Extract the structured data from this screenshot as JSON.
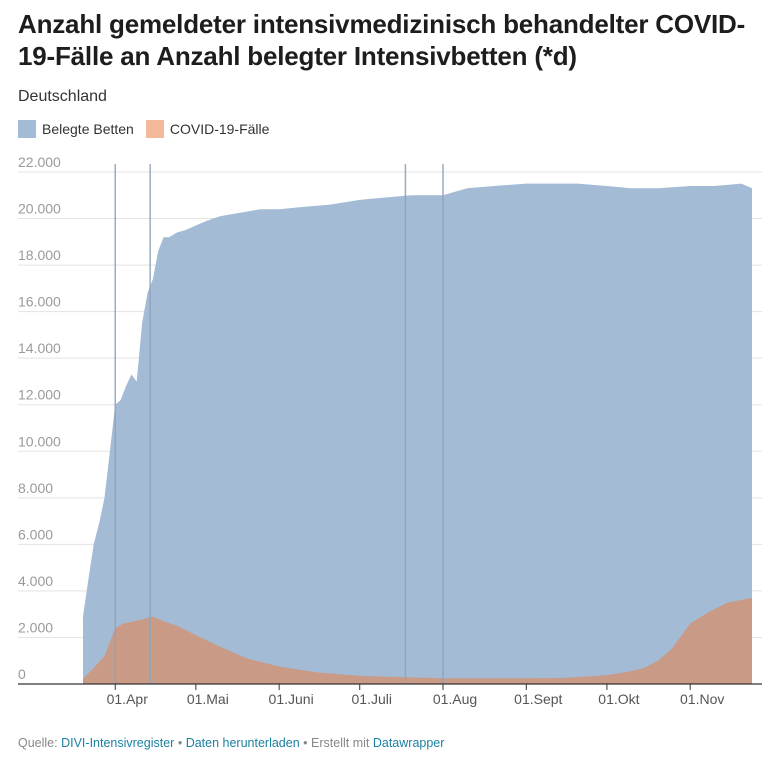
{
  "header": {
    "title": "Anzahl gemeldeter intensivmedizinisch behandelter COVID-19-Fälle an Anzahl belegter Intensivbetten (*d)",
    "subtitle": "Deutschland"
  },
  "legend": [
    {
      "label": "Belegte Betten",
      "color": "#a3bbd4"
    },
    {
      "label": "COVID-19-Fälle",
      "color": "#f4b89a"
    }
  ],
  "footer": {
    "source_prefix": "Quelle:",
    "source_link": "DIVI-Intensivregister",
    "sep1": "•",
    "download_link": "Daten herunterladen",
    "sep2": "•",
    "created_text": "Erstellt mit",
    "tool_link": "Datawrapper"
  },
  "chart_data": {
    "type": "area",
    "x_start": "2020-03-20",
    "x_end": "2020-11-24",
    "ylim": [
      0,
      22000
    ],
    "yticks": [
      0,
      2000,
      4000,
      6000,
      8000,
      10000,
      12000,
      14000,
      16000,
      18000,
      20000,
      22000
    ],
    "ytick_labels": [
      "0",
      "2.000",
      "4.000",
      "6.000",
      "8.000",
      "10.000",
      "12.000",
      "14.000",
      "16.000",
      "18.000",
      "20.000",
      "22.000"
    ],
    "xtick_labels": [
      "01.Apr",
      "01.Mai",
      "01.Juni",
      "01.Juli",
      "01.Aug",
      "01.Sept",
      "01.Okt",
      "01.Nov"
    ],
    "xtick_dates": [
      "2020-04-01",
      "2020-05-01",
      "2020-06-01",
      "2020-07-01",
      "2020-08-01",
      "2020-09-01",
      "2020-10-01",
      "2020-11-01"
    ],
    "vertical_markers": [
      "2020-04-01",
      "2020-04-14",
      "2020-07-18",
      "2020-08-01"
    ],
    "grid": true,
    "series": [
      {
        "name": "Belegte Betten",
        "color": "#a3bbd4",
        "x": [
          "2020-03-20",
          "2020-03-22",
          "2020-03-24",
          "2020-03-26",
          "2020-03-28",
          "2020-03-30",
          "2020-04-01",
          "2020-04-03",
          "2020-04-05",
          "2020-04-07",
          "2020-04-09",
          "2020-04-11",
          "2020-04-13",
          "2020-04-15",
          "2020-04-17",
          "2020-04-19",
          "2020-04-21",
          "2020-04-24",
          "2020-04-27",
          "2020-05-01",
          "2020-05-05",
          "2020-05-10",
          "2020-05-15",
          "2020-05-20",
          "2020-05-25",
          "2020-06-01",
          "2020-06-10",
          "2020-06-20",
          "2020-07-01",
          "2020-07-10",
          "2020-07-20",
          "2020-08-01",
          "2020-08-10",
          "2020-08-20",
          "2020-09-01",
          "2020-09-10",
          "2020-09-20",
          "2020-10-01",
          "2020-10-10",
          "2020-10-20",
          "2020-11-01",
          "2020-11-10",
          "2020-11-20",
          "2020-11-24"
        ],
        "values": [
          2900,
          4500,
          6000,
          6900,
          8000,
          10000,
          12000,
          12200,
          12800,
          13300,
          13000,
          15500,
          16800,
          17400,
          18600,
          19200,
          19200,
          19400,
          19500,
          19700,
          19900,
          20100,
          20200,
          20300,
          20400,
          20400,
          20500,
          20600,
          20800,
          20900,
          21000,
          21000,
          21300,
          21400,
          21500,
          21500,
          21500,
          21400,
          21300,
          21300,
          21400,
          21400,
          21500,
          21300
        ]
      },
      {
        "name": "COVID-19-Fälle",
        "color": "#c99a85",
        "x": [
          "2020-03-20",
          "2020-03-24",
          "2020-03-28",
          "2020-04-01",
          "2020-04-04",
          "2020-04-08",
          "2020-04-12",
          "2020-04-15",
          "2020-04-19",
          "2020-04-24",
          "2020-05-01",
          "2020-05-10",
          "2020-05-20",
          "2020-06-01",
          "2020-06-15",
          "2020-07-01",
          "2020-07-15",
          "2020-08-01",
          "2020-08-15",
          "2020-09-01",
          "2020-09-15",
          "2020-10-01",
          "2020-10-10",
          "2020-10-15",
          "2020-10-20",
          "2020-10-25",
          "2020-11-01",
          "2020-11-08",
          "2020-11-15",
          "2020-11-24"
        ],
        "values": [
          200,
          700,
          1200,
          2400,
          2600,
          2700,
          2800,
          2900,
          2700,
          2500,
          2100,
          1600,
          1100,
          750,
          500,
          350,
          300,
          250,
          240,
          250,
          260,
          380,
          550,
          700,
          1000,
          1500,
          2600,
          3100,
          3500,
          3700
        ]
      }
    ]
  }
}
